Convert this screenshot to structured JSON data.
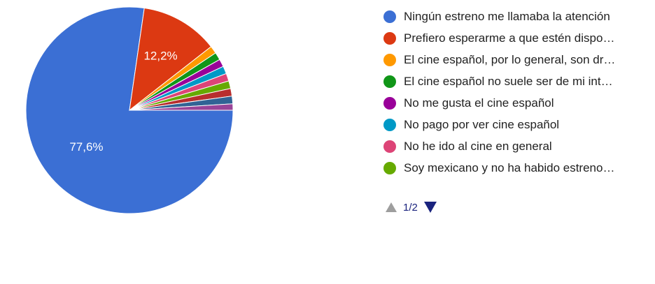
{
  "chart_data": {
    "type": "pie",
    "slices": [
      {
        "label": "Ningún estreno me llamaba la atención",
        "value": 77.6,
        "color": "#3b6fd4",
        "show_label": true,
        "display": "77,6%"
      },
      {
        "label": "Prefiero esperarme a que estén dispo…",
        "value": 12.2,
        "color": "#dc3912",
        "show_label": true,
        "display": "12,2%"
      },
      {
        "label": "El cine español, por lo general, son dr…",
        "value": 1.2,
        "color": "#ff9900",
        "show_label": false
      },
      {
        "label": "El cine español no suele ser de mi int…",
        "value": 1.2,
        "color": "#109618",
        "show_label": false
      },
      {
        "label": "No me gusta el cine español",
        "value": 1.2,
        "color": "#990099",
        "show_label": false
      },
      {
        "label": "No pago por ver cine español",
        "value": 1.2,
        "color": "#0099c6",
        "show_label": false
      },
      {
        "label": "No he ido al cine en general",
        "value": 1.2,
        "color": "#dd4477",
        "show_label": false
      },
      {
        "label": "Soy mexicano y no ha habido estreno…",
        "value": 1.2,
        "color": "#66aa00",
        "show_label": false
      },
      {
        "label": "",
        "value": 1.2,
        "color": "#b82e2e",
        "show_label": false
      },
      {
        "label": "",
        "value": 1.2,
        "color": "#316395",
        "show_label": false
      },
      {
        "label": "",
        "value": 1.0,
        "color": "#994499",
        "show_label": false
      }
    ],
    "legend_position": "right"
  },
  "legend": {
    "items": [
      {
        "label": "Ningún estreno me llamaba la atención",
        "color": "#3b6fd4"
      },
      {
        "label": "Prefiero esperarme a que estén dispo…",
        "color": "#dc3912"
      },
      {
        "label": "El cine español, por lo general, son dr…",
        "color": "#ff9900"
      },
      {
        "label": "El cine español no suele ser de mi int…",
        "color": "#109618"
      },
      {
        "label": "No me gusta el cine español",
        "color": "#990099"
      },
      {
        "label": "No pago por ver cine español",
        "color": "#0099c6"
      },
      {
        "label": "No he ido al cine en general",
        "color": "#dd4477"
      },
      {
        "label": "Soy mexicano y no ha habido estreno…",
        "color": "#66aa00"
      }
    ]
  },
  "pager": {
    "label": "1/2"
  }
}
